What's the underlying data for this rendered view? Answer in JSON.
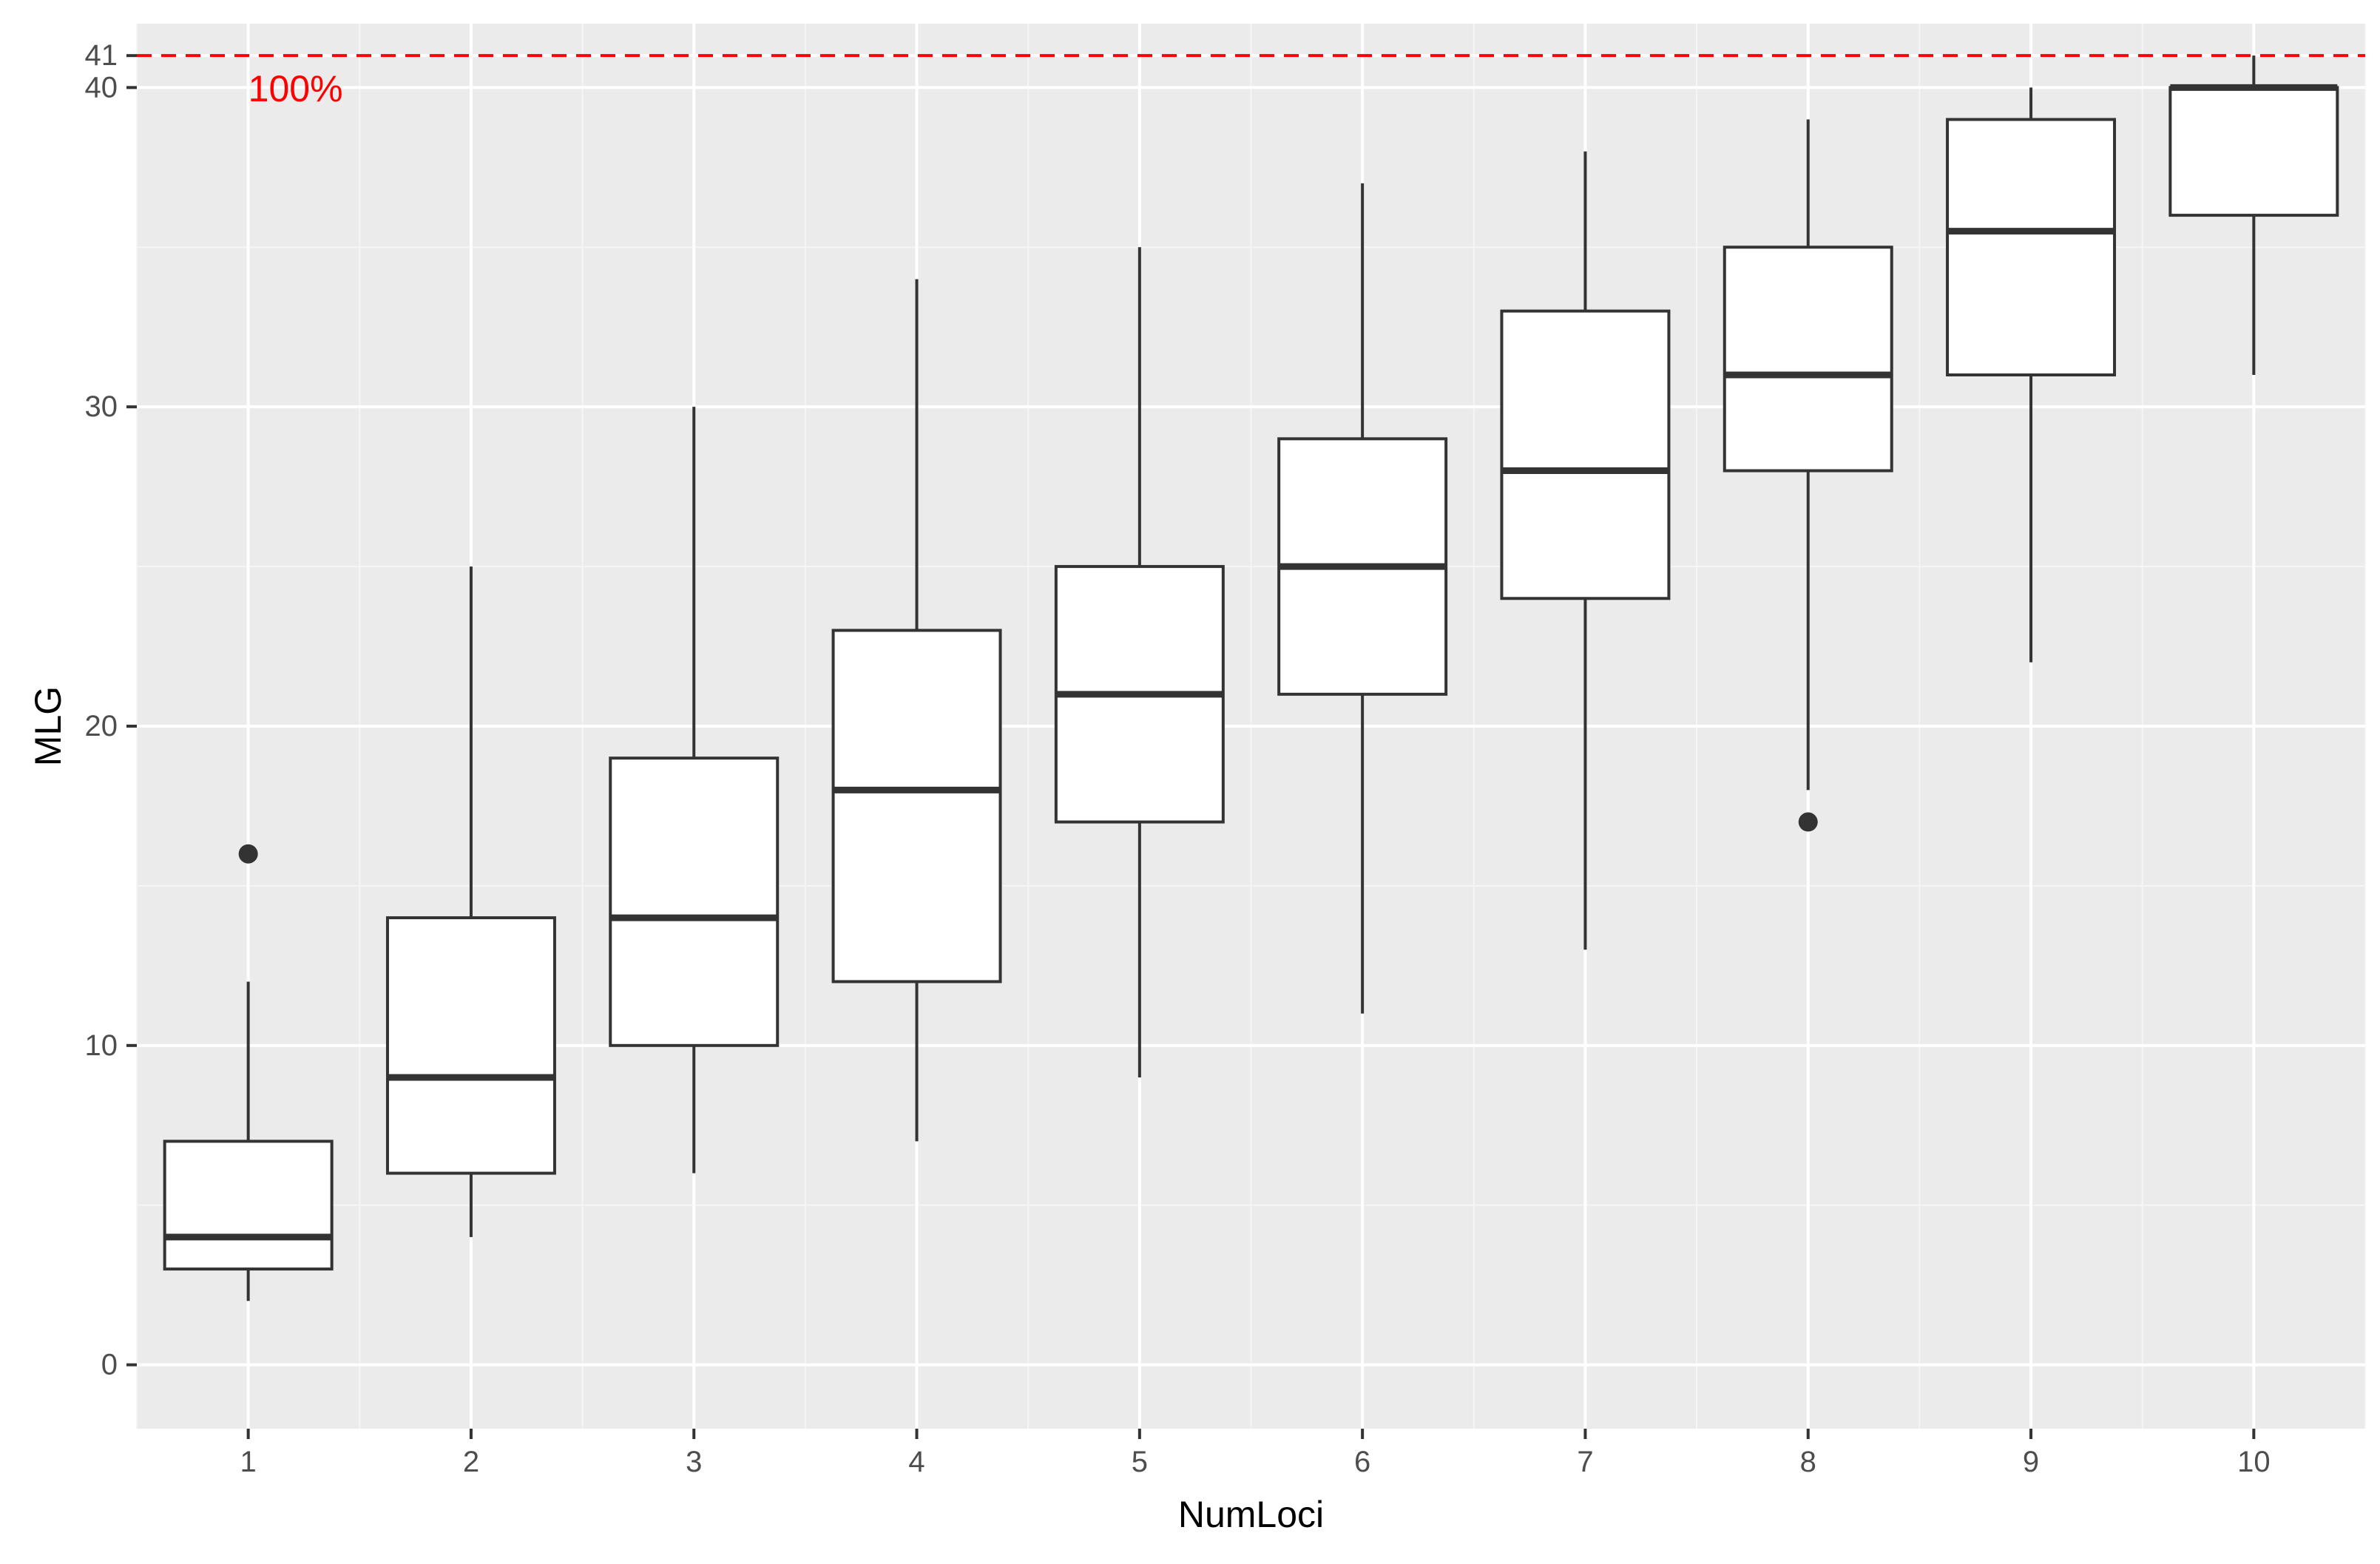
{
  "chart_data": {
    "type": "box",
    "xlabel": "NumLoci",
    "ylabel": "MLG",
    "categories": [
      "1",
      "2",
      "3",
      "4",
      "5",
      "6",
      "7",
      "8",
      "9",
      "10"
    ],
    "boxes": [
      {
        "x": "1",
        "min": 2,
        "q1": 3,
        "median": 4,
        "q3": 7,
        "max": 12,
        "outliers": [
          16
        ]
      },
      {
        "x": "2",
        "min": 4,
        "q1": 6,
        "median": 9,
        "q3": 14,
        "max": 25,
        "outliers": []
      },
      {
        "x": "3",
        "min": 6,
        "q1": 10,
        "median": 14,
        "q3": 19,
        "max": 30,
        "outliers": []
      },
      {
        "x": "4",
        "min": 7,
        "q1": 12,
        "median": 18,
        "q3": 23,
        "max": 34,
        "outliers": []
      },
      {
        "x": "5",
        "min": 9,
        "q1": 17,
        "median": 21,
        "q3": 25,
        "max": 35,
        "outliers": []
      },
      {
        "x": "6",
        "min": 11,
        "q1": 21,
        "median": 25,
        "q3": 29,
        "max": 37,
        "outliers": []
      },
      {
        "x": "7",
        "min": 13,
        "q1": 24,
        "median": 28,
        "q3": 33,
        "max": 38,
        "outliers": []
      },
      {
        "x": "8",
        "min": 18,
        "q1": 28,
        "median": 31,
        "q3": 35,
        "max": 39,
        "outliers": [
          17
        ]
      },
      {
        "x": "9",
        "min": 22,
        "q1": 31,
        "median": 35.5,
        "q3": 39,
        "max": 40,
        "outliers": []
      },
      {
        "x": "10",
        "min": 31,
        "q1": 36,
        "median": 40,
        "q3": 40,
        "max": 41,
        "outliers": []
      }
    ],
    "y_ticks": [
      0,
      10,
      20,
      30,
      40,
      41
    ],
    "y_tick_labels": [
      "0",
      "10",
      "20",
      "30",
      "40",
      "41"
    ],
    "ylim": [
      -2,
      42
    ],
    "reference_line": {
      "y": 41,
      "label": "100%",
      "color": "#ff0000",
      "style": "dashed"
    },
    "grid": true,
    "colors": {
      "panel_background": "#ebebeb",
      "grid_major": "#ffffff",
      "grid_minor": "#f5f5f5",
      "box_fill": "#ffffff",
      "box_stroke": "#333333",
      "tick_label": "#4d4d4d",
      "axis_title": "#000000",
      "reference": "#ff0000"
    }
  }
}
